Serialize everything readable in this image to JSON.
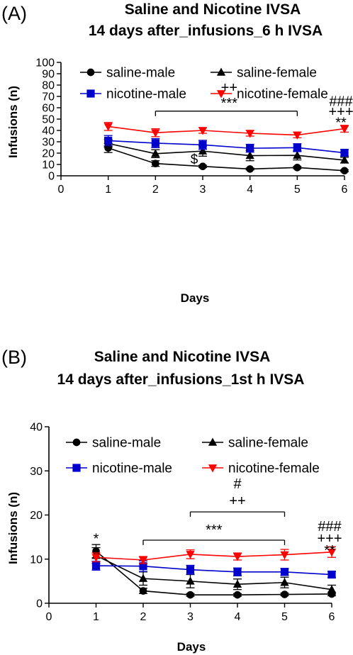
{
  "chart_data": [
    {
      "type": "line",
      "panel_label": "(A)",
      "title_line1": "Saline and Nicotine IVSA",
      "title_line2": "14 days after_infusions_6 h IVSA",
      "xlabel": "Days",
      "ylabel": "Infusions (n)",
      "xlim": [
        0,
        6
      ],
      "ylim": [
        0,
        100
      ],
      "x_ticks": [
        0,
        1,
        2,
        3,
        4,
        5,
        6
      ],
      "y_ticks": [
        0,
        10,
        20,
        30,
        40,
        50,
        60,
        70,
        80,
        90,
        100
      ],
      "x": [
        1,
        2,
        3,
        4,
        5,
        6
      ],
      "legend_position": "top",
      "series": [
        {
          "name": "saline-male",
          "color": "#000000",
          "marker": "circle",
          "values": [
            24.5,
            10.8,
            8.3,
            6.0,
            7.3,
            4.5
          ],
          "errors": [
            4.0,
            2.5,
            1.0,
            0.8,
            1.0,
            0.8
          ]
        },
        {
          "name": "saline-female",
          "color": "#000000",
          "marker": "triangle-up",
          "values": [
            28.5,
            19.5,
            21.8,
            17.8,
            18.0,
            13.8
          ],
          "errors": [
            3.5,
            3.5,
            4.5,
            4.5,
            4.0,
            2.5
          ]
        },
        {
          "name": "nicotine-male",
          "color": "#0000cc",
          "marker": "square",
          "values": [
            31.0,
            28.8,
            27.3,
            24.3,
            24.8,
            20.3
          ],
          "errors": [
            4.5,
            4.0,
            4.0,
            3.5,
            3.5,
            3.0
          ]
        },
        {
          "name": "nicotine-female",
          "color": "#ff0000",
          "marker": "triangle-down",
          "values": [
            43.5,
            38.0,
            40.0,
            37.5,
            36.0,
            41.5
          ],
          "errors": [
            3.5,
            3.5,
            2.5,
            2.5,
            2.5,
            3.0
          ]
        }
      ],
      "annotations": {
        "bracket_from": 2,
        "bracket_to": 5,
        "bracket_y": 57,
        "bracket_line1": "++",
        "bracket_line2": "***",
        "dollar": "$",
        "dollar_x": 3,
        "dollar_y": 15,
        "day6_line1": "###",
        "day6_line2": "+++",
        "day6_line3": "**",
        "day6_y1": 66,
        "day6_y2": 57,
        "day6_y3": 49
      }
    },
    {
      "type": "line",
      "panel_label": "(B)",
      "title_line1": "Saline and Nicotine IVSA",
      "title_line2": "14 days after_infusions_1st h IVSA",
      "xlabel": "Days",
      "ylabel": "Infusions (n)",
      "xlim": [
        0,
        6
      ],
      "ylim": [
        0,
        40
      ],
      "x_ticks": [
        0,
        1,
        2,
        3,
        4,
        5,
        6
      ],
      "y_ticks": [
        0,
        10,
        20,
        30,
        40
      ],
      "x": [
        1,
        2,
        3,
        4,
        5,
        6
      ],
      "legend_position": "top",
      "series": [
        {
          "name": "saline-male",
          "color": "#000000",
          "marker": "circle",
          "values": [
            11.8,
            2.8,
            1.9,
            1.9,
            2.0,
            2.1
          ],
          "errors": [
            1.5,
            0.6,
            0.3,
            0.3,
            0.3,
            0.4
          ]
        },
        {
          "name": "saline-female",
          "color": "#000000",
          "marker": "triangle-up",
          "values": [
            10.8,
            5.6,
            5.0,
            4.3,
            4.7,
            3.1
          ],
          "errors": [
            1.8,
            1.5,
            1.5,
            1.2,
            1.2,
            1.0
          ]
        },
        {
          "name": "nicotine-male",
          "color": "#0000cc",
          "marker": "square",
          "values": [
            8.5,
            8.4,
            7.6,
            7.1,
            7.1,
            6.5
          ],
          "errors": [
            1.0,
            1.2,
            1.0,
            0.9,
            0.8,
            0.7
          ]
        },
        {
          "name": "nicotine-female",
          "color": "#ff0000",
          "marker": "triangle-down",
          "values": [
            10.4,
            9.8,
            11.1,
            10.6,
            11.0,
            11.6
          ],
          "errors": [
            1.0,
            0.8,
            1.0,
            0.8,
            1.2,
            1.2
          ]
        }
      ],
      "annotations": {
        "star_day1": "*",
        "star_day1_y": 13.6,
        "bracket1_from": 2,
        "bracket1_to": 5,
        "bracket1_y": 14.3,
        "bracket1_label": "***",
        "bracket2_from": 3,
        "bracket2_to": 5,
        "bracket2_y": 20.7,
        "bracket2_line1": "#",
        "bracket2_line2": "++",
        "day6_line1": "###",
        "day6_line2": "+++",
        "day6_line3": "**",
        "day6_y1": 17.5,
        "day6_y2": 14.8,
        "day6_y3": 12.5
      }
    }
  ]
}
